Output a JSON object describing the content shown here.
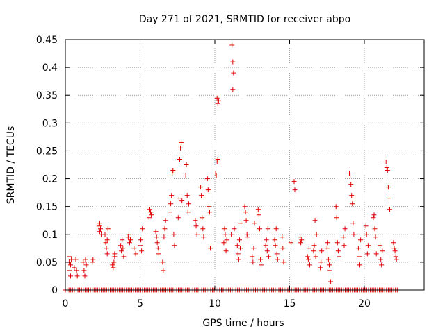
{
  "chart_data": {
    "type": "scatter",
    "title": "Day 271 of 2021, SRMTID for receiver abpo",
    "xlabel": "GPS time / hours",
    "ylabel": "SRMTID / TECUs",
    "xlim": [
      0,
      24
    ],
    "ylim": [
      0,
      0.45
    ],
    "grid": true,
    "marker": "+",
    "color": "#e00000",
    "x_ticks": [
      0,
      5,
      10,
      15,
      20
    ],
    "y_ticks": [
      0,
      0.05,
      0.1,
      0.15,
      0.2,
      0.25,
      0.3,
      0.35,
      0.4,
      0.45
    ],
    "series": [
      {
        "name": "SRMTID",
        "points": [
          [
            0.25,
            0.05
          ],
          [
            0.3,
            0.06
          ],
          [
            0.3,
            0.035
          ],
          [
            0.35,
            0.045
          ],
          [
            0.35,
            0.025
          ],
          [
            0.4,
            0.055
          ],
          [
            0.6,
            0.04
          ],
          [
            0.7,
            0.055
          ],
          [
            0.75,
            0.035
          ],
          [
            0.8,
            0.025
          ],
          [
            1.2,
            0.05
          ],
          [
            1.25,
            0.035
          ],
          [
            1.3,
            0.025
          ],
          [
            1.35,
            0.055
          ],
          [
            1.4,
            0.045
          ],
          [
            1.8,
            0.05
          ],
          [
            1.85,
            0.055
          ],
          [
            2.25,
            0.115
          ],
          [
            2.3,
            0.12
          ],
          [
            2.3,
            0.105
          ],
          [
            2.35,
            0.11
          ],
          [
            2.4,
            0.1
          ],
          [
            2.65,
            0.1
          ],
          [
            2.7,
            0.085
          ],
          [
            2.75,
            0.075
          ],
          [
            2.8,
            0.09
          ],
          [
            2.8,
            0.065
          ],
          [
            2.85,
            0.11
          ],
          [
            3.15,
            0.045
          ],
          [
            3.2,
            0.04
          ],
          [
            3.25,
            0.05
          ],
          [
            3.3,
            0.06
          ],
          [
            3.3,
            0.065
          ],
          [
            3.7,
            0.08
          ],
          [
            3.75,
            0.07
          ],
          [
            3.8,
            0.09
          ],
          [
            3.85,
            0.075
          ],
          [
            3.9,
            0.06
          ],
          [
            4.2,
            0.095
          ],
          [
            4.25,
            0.1
          ],
          [
            4.3,
            0.085
          ],
          [
            4.35,
            0.09
          ],
          [
            4.6,
            0.075
          ],
          [
            4.7,
            0.065
          ],
          [
            5.0,
            0.08
          ],
          [
            5.05,
            0.09
          ],
          [
            5.1,
            0.07
          ],
          [
            5.15,
            0.11
          ],
          [
            5.6,
            0.13
          ],
          [
            5.65,
            0.145
          ],
          [
            5.7,
            0.14
          ],
          [
            5.75,
            0.135
          ],
          [
            6.05,
            0.105
          ],
          [
            6.1,
            0.095
          ],
          [
            6.15,
            0.085
          ],
          [
            6.2,
            0.075
          ],
          [
            6.25,
            0.065
          ],
          [
            6.5,
            0.05
          ],
          [
            6.55,
            0.035
          ],
          [
            6.6,
            0.095
          ],
          [
            6.65,
            0.11
          ],
          [
            6.7,
            0.125
          ],
          [
            7.0,
            0.14
          ],
          [
            7.05,
            0.155
          ],
          [
            7.1,
            0.17
          ],
          [
            7.15,
            0.21
          ],
          [
            7.2,
            0.215
          ],
          [
            7.25,
            0.1
          ],
          [
            7.3,
            0.08
          ],
          [
            7.55,
            0.13
          ],
          [
            7.6,
            0.165
          ],
          [
            7.65,
            0.235
          ],
          [
            7.7,
            0.255
          ],
          [
            7.75,
            0.265
          ],
          [
            7.8,
            0.16
          ],
          [
            8.05,
            0.205
          ],
          [
            8.1,
            0.225
          ],
          [
            8.15,
            0.17
          ],
          [
            8.2,
            0.14
          ],
          [
            8.25,
            0.155
          ],
          [
            8.7,
            0.125
          ],
          [
            8.75,
            0.115
          ],
          [
            8.8,
            0.1
          ],
          [
            9.05,
            0.185
          ],
          [
            9.1,
            0.17
          ],
          [
            9.15,
            0.13
          ],
          [
            9.2,
            0.11
          ],
          [
            9.25,
            0.095
          ],
          [
            9.5,
            0.2
          ],
          [
            9.55,
            0.18
          ],
          [
            9.6,
            0.15
          ],
          [
            9.65,
            0.14
          ],
          [
            9.7,
            0.075
          ],
          [
            10.05,
            0.21
          ],
          [
            10.1,
            0.205
          ],
          [
            10.15,
            0.23
          ],
          [
            10.2,
            0.235
          ],
          [
            10.15,
            0.345
          ],
          [
            10.2,
            0.335
          ],
          [
            10.25,
            0.34
          ],
          [
            10.6,
            0.085
          ],
          [
            10.65,
            0.11
          ],
          [
            10.7,
            0.1
          ],
          [
            10.75,
            0.07
          ],
          [
            10.8,
            0.09
          ],
          [
            11.1,
            0.1
          ],
          [
            11.15,
            0.44
          ],
          [
            11.2,
            0.41
          ],
          [
            11.25,
            0.39
          ],
          [
            11.2,
            0.36
          ],
          [
            11.3,
            0.11
          ],
          [
            11.5,
            0.08
          ],
          [
            11.55,
            0.065
          ],
          [
            11.6,
            0.055
          ],
          [
            11.65,
            0.09
          ],
          [
            11.7,
            0.075
          ],
          [
            11.75,
            0.12
          ],
          [
            12.0,
            0.15
          ],
          [
            12.05,
            0.14
          ],
          [
            12.1,
            0.125
          ],
          [
            12.15,
            0.1
          ],
          [
            12.2,
            0.095
          ],
          [
            12.5,
            0.06
          ],
          [
            12.55,
            0.05
          ],
          [
            12.6,
            0.075
          ],
          [
            12.65,
            0.12
          ],
          [
            12.9,
            0.145
          ],
          [
            12.95,
            0.135
          ],
          [
            13.0,
            0.11
          ],
          [
            13.05,
            0.055
          ],
          [
            13.1,
            0.045
          ],
          [
            13.4,
            0.08
          ],
          [
            13.45,
            0.09
          ],
          [
            13.5,
            0.07
          ],
          [
            13.55,
            0.11
          ],
          [
            13.6,
            0.06
          ],
          [
            14.0,
            0.09
          ],
          [
            14.05,
            0.08
          ],
          [
            14.1,
            0.11
          ],
          [
            14.15,
            0.065
          ],
          [
            14.2,
            0.055
          ],
          [
            14.5,
            0.095
          ],
          [
            14.55,
            0.075
          ],
          [
            14.6,
            0.05
          ],
          [
            15.1,
            0.085
          ],
          [
            15.3,
            0.195
          ],
          [
            15.35,
            0.18
          ],
          [
            15.7,
            0.095
          ],
          [
            15.75,
            0.085
          ],
          [
            15.8,
            0.09
          ],
          [
            16.2,
            0.06
          ],
          [
            16.25,
            0.055
          ],
          [
            16.3,
            0.075
          ],
          [
            16.35,
            0.045
          ],
          [
            16.6,
            0.07
          ],
          [
            16.65,
            0.08
          ],
          [
            16.7,
            0.125
          ],
          [
            16.75,
            0.06
          ],
          [
            16.8,
            0.1
          ],
          [
            17.05,
            0.04
          ],
          [
            17.1,
            0.05
          ],
          [
            17.15,
            0.07
          ],
          [
            17.5,
            0.075
          ],
          [
            17.55,
            0.085
          ],
          [
            17.6,
            0.055
          ],
          [
            17.65,
            0.045
          ],
          [
            17.7,
            0.035
          ],
          [
            17.75,
            0.015
          ],
          [
            18.1,
            0.15
          ],
          [
            18.15,
            0.13
          ],
          [
            18.2,
            0.085
          ],
          [
            18.25,
            0.07
          ],
          [
            18.3,
            0.06
          ],
          [
            18.6,
            0.095
          ],
          [
            18.65,
            0.08
          ],
          [
            18.7,
            0.11
          ],
          [
            19.0,
            0.21
          ],
          [
            19.05,
            0.205
          ],
          [
            19.1,
            0.19
          ],
          [
            19.15,
            0.17
          ],
          [
            19.2,
            0.155
          ],
          [
            19.25,
            0.12
          ],
          [
            19.3,
            0.1
          ],
          [
            19.6,
            0.075
          ],
          [
            19.65,
            0.06
          ],
          [
            19.7,
            0.045
          ],
          [
            19.75,
            0.09
          ],
          [
            20.1,
            0.115
          ],
          [
            20.15,
            0.1
          ],
          [
            20.2,
            0.065
          ],
          [
            20.25,
            0.08
          ],
          [
            20.6,
            0.13
          ],
          [
            20.65,
            0.135
          ],
          [
            20.7,
            0.11
          ],
          [
            20.75,
            0.095
          ],
          [
            20.8,
            0.065
          ],
          [
            21.05,
            0.08
          ],
          [
            21.1,
            0.055
          ],
          [
            21.15,
            0.045
          ],
          [
            21.2,
            0.07
          ],
          [
            21.45,
            0.23
          ],
          [
            21.5,
            0.22
          ],
          [
            21.55,
            0.215
          ],
          [
            21.6,
            0.185
          ],
          [
            21.65,
            0.165
          ],
          [
            21.7,
            0.145
          ],
          [
            21.95,
            0.085
          ],
          [
            22.0,
            0.075
          ],
          [
            22.05,
            0.07
          ],
          [
            22.1,
            0.06
          ],
          [
            22.15,
            0.055
          ]
        ],
        "zero_band": {
          "from": 0.0,
          "to": 22.2,
          "step": 0.12,
          "value": 0
        }
      }
    ]
  }
}
